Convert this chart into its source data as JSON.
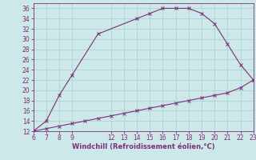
{
  "xlabel": "Windchill (Refroidissement éolien,°C)",
  "line1_x": [
    6,
    7,
    8,
    9,
    11,
    14,
    15,
    16,
    17,
    18,
    19,
    20,
    21,
    22,
    23
  ],
  "line1_y": [
    12,
    14,
    19,
    23,
    31,
    34,
    35,
    36,
    36,
    36,
    35,
    33,
    29,
    25,
    22
  ],
  "line2_x": [
    6,
    7,
    8,
    9,
    10,
    11,
    12,
    13,
    14,
    15,
    16,
    17,
    18,
    19,
    20,
    21,
    22,
    23
  ],
  "line2_y": [
    12,
    12.5,
    13,
    13.5,
    14,
    14.5,
    15,
    15.5,
    16,
    16.5,
    17,
    17.5,
    18,
    18.5,
    19,
    19.5,
    20.5,
    22
  ],
  "line_color": "#7B2F7B",
  "marker": "x",
  "bg_color": "#cce8e8",
  "grid_color": "#aacece",
  "xlim": [
    6,
    23
  ],
  "ylim": [
    12,
    37
  ],
  "xticks": [
    6,
    7,
    8,
    9,
    12,
    13,
    14,
    15,
    16,
    17,
    18,
    19,
    20,
    21,
    22,
    23
  ],
  "yticks": [
    12,
    14,
    16,
    18,
    20,
    22,
    24,
    26,
    28,
    30,
    32,
    34,
    36
  ],
  "tick_color": "#7B2F7B",
  "label_fontsize": 6.0,
  "tick_fontsize": 5.5
}
